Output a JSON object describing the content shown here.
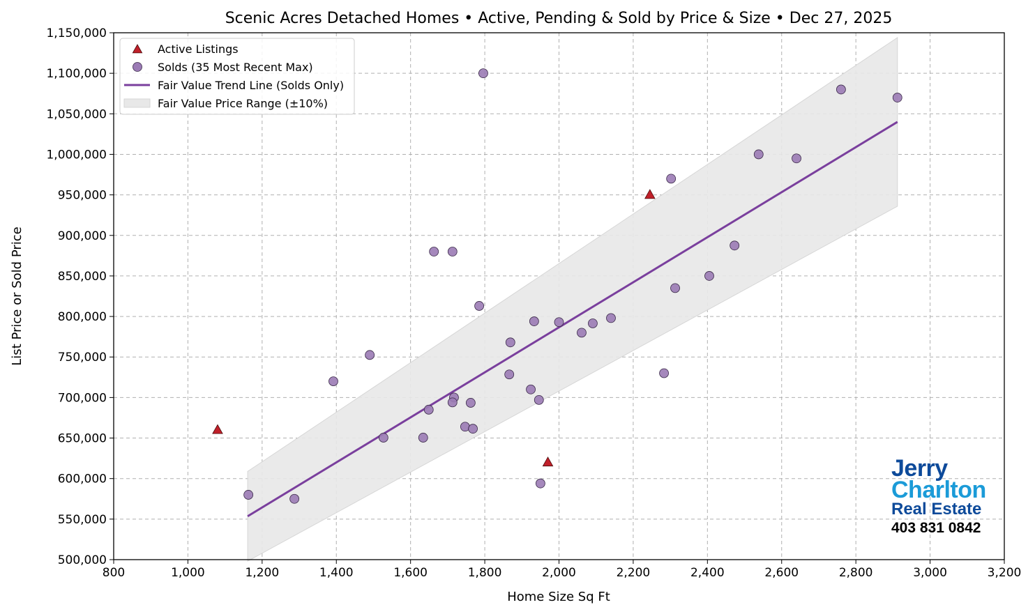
{
  "chart_data": {
    "type": "scatter",
    "title": "Scenic Acres Detached Homes • Active, Pending & Sold by Price & Size • Dec 27, 2025",
    "xlabel": "Home Size Sq Ft",
    "ylabel": "List Price or Sold Price",
    "xlim": [
      800,
      3200
    ],
    "ylim": [
      500000,
      1150000
    ],
    "xticks": [
      800,
      1000,
      1200,
      1400,
      1600,
      1800,
      2000,
      2200,
      2400,
      2600,
      2800,
      3000,
      3200
    ],
    "xtick_labels": [
      "800",
      "1,000",
      "1,200",
      "1,400",
      "1,600",
      "1,800",
      "2,000",
      "2,200",
      "2,400",
      "2,600",
      "2,800",
      "3,000",
      "3,200"
    ],
    "yticks": [
      500000,
      550000,
      600000,
      650000,
      700000,
      750000,
      800000,
      850000,
      900000,
      950000,
      1000000,
      1050000,
      1100000,
      1150000
    ],
    "ytick_labels": [
      "500,000",
      "550,000",
      "600,000",
      "650,000",
      "700,000",
      "750,000",
      "800,000",
      "850,000",
      "900,000",
      "950,000",
      "1,000,000",
      "1,050,000",
      "1,100,000",
      "1,150,000"
    ],
    "grid": true,
    "legend_placement": "top-left",
    "series": [
      {
        "name": "Active Listings",
        "marker": "triangle",
        "color": "#c0202a",
        "points": [
          [
            1080,
            660000
          ],
          [
            2245,
            950000
          ],
          [
            1970,
            620000
          ]
        ]
      },
      {
        "name": "Solds (35 Most Recent Max)",
        "marker": "circle",
        "color": "#9b7bb5",
        "points": [
          [
            1796,
            1100000
          ],
          [
            2760,
            1080000
          ],
          [
            2912,
            1070000
          ],
          [
            2538,
            1000000
          ],
          [
            2640,
            995000
          ],
          [
            2302,
            970000
          ],
          [
            1663,
            880000
          ],
          [
            1713,
            880000
          ],
          [
            2473,
            887500
          ],
          [
            2405,
            850000
          ],
          [
            2313,
            835000
          ],
          [
            1785,
            813000
          ],
          [
            1933,
            794000
          ],
          [
            2000,
            793000
          ],
          [
            2091,
            791500
          ],
          [
            2140,
            798000
          ],
          [
            2061,
            780000
          ],
          [
            1869,
            768000
          ],
          [
            1490,
            752500
          ],
          [
            1392,
            720000
          ],
          [
            1866,
            728500
          ],
          [
            2283,
            730000
          ],
          [
            1924,
            710000
          ],
          [
            1946,
            697000
          ],
          [
            1717,
            700000
          ],
          [
            1713,
            694000
          ],
          [
            1762,
            693500
          ],
          [
            1649,
            685000
          ],
          [
            1747,
            664000
          ],
          [
            1768,
            661500
          ],
          [
            1527,
            650500
          ],
          [
            1634,
            650500
          ],
          [
            1950,
            594000
          ],
          [
            1163,
            580000
          ],
          [
            1287,
            575000
          ]
        ]
      },
      {
        "name": "Fair Value Trend Line (Solds Only)",
        "type": "line",
        "color": "#7a3f9d",
        "points": [
          [
            1161,
            553500
          ],
          [
            2912,
            1040000
          ]
        ]
      },
      {
        "name": "Fair Value Price Range (±10%)",
        "type": "band",
        "color": "#e8e8e8",
        "pct": 10
      }
    ]
  },
  "logo": {
    "line1": "Jerry",
    "line2": "Charlton",
    "line3": "Real Estate",
    "line4": "403 831 0842"
  }
}
